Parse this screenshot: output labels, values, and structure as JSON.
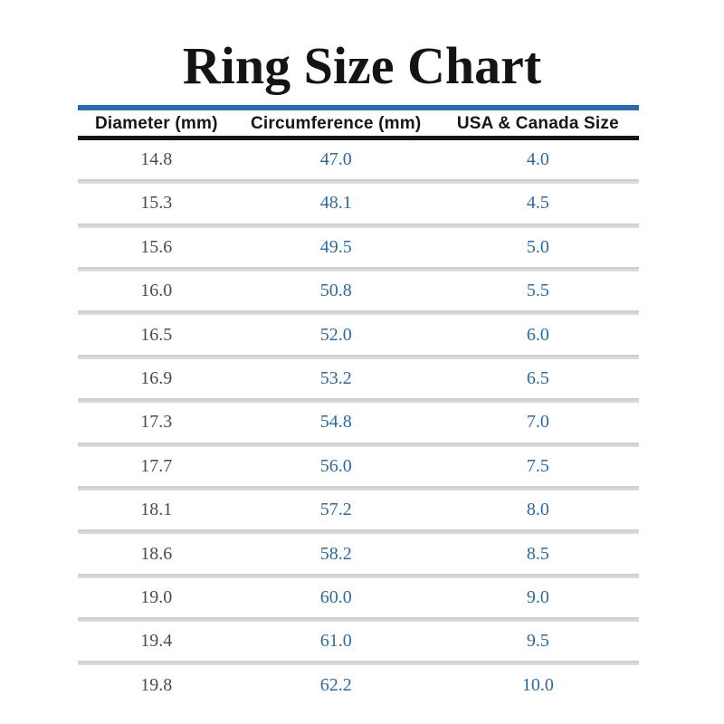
{
  "page": {
    "title": "Ring Size Chart"
  },
  "chart_data": {
    "type": "table",
    "title": "Ring Size Chart",
    "columns": [
      "Diameter (mm)",
      "Circumference (mm)",
      "USA & Canada Size"
    ],
    "rows": [
      [
        "14.8",
        "47.0",
        "4.0"
      ],
      [
        "15.3",
        "48.1",
        "4.5"
      ],
      [
        "15.6",
        "49.5",
        "5.0"
      ],
      [
        "16.0",
        "50.8",
        "5.5"
      ],
      [
        "16.5",
        "52.0",
        "6.0"
      ],
      [
        "16.9",
        "53.2",
        "6.5"
      ],
      [
        "17.3",
        "54.8",
        "7.0"
      ],
      [
        "17.7",
        "56.0",
        "7.5"
      ],
      [
        "18.1",
        "57.2",
        "8.0"
      ],
      [
        "18.6",
        "58.2",
        "8.5"
      ],
      [
        "19.0",
        "60.0",
        "9.0"
      ],
      [
        "19.4",
        "61.0",
        "9.5"
      ],
      [
        "19.8",
        "62.2",
        "10.0"
      ]
    ]
  },
  "colors": {
    "title_text": "#141414",
    "accent_rule_blue": "#2a6cab",
    "header_rule_black": "#151515",
    "header_text": "#161616",
    "diameter_text": "#4c4b49",
    "value_text_blue": "#2f6a9e",
    "row_divider_gray": "#d4d4d4",
    "background": "#ffffff"
  }
}
